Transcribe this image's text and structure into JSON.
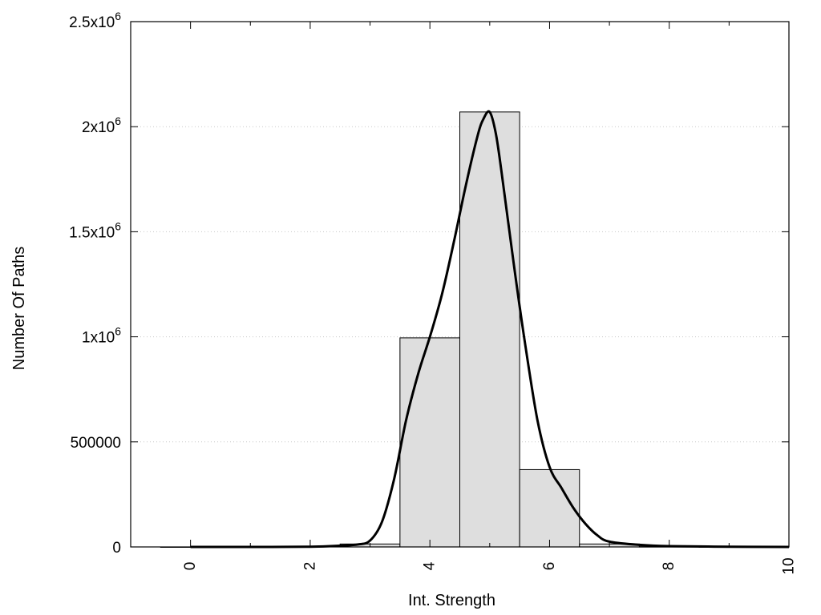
{
  "chart_data": {
    "type": "bar",
    "xlabel": "Int. Strength",
    "ylabel": "Number Of Paths",
    "xlim": [
      -1,
      10
    ],
    "ylim": [
      0,
      2500000
    ],
    "grid": "horizontal dotted",
    "x_ticks": [
      {
        "value": 0,
        "label": "0"
      },
      {
        "value": 2,
        "label": "2"
      },
      {
        "value": 4,
        "label": "4"
      },
      {
        "value": 6,
        "label": "6"
      },
      {
        "value": 8,
        "label": "8"
      },
      {
        "value": 10,
        "label": "10"
      }
    ],
    "y_ticks": [
      {
        "value": 0,
        "base": "0",
        "exp": ""
      },
      {
        "value": 500000,
        "base": "500000",
        "exp": ""
      },
      {
        "value": 1000000,
        "base": "1x10",
        "exp": "6"
      },
      {
        "value": 1500000,
        "base": "1.5x10",
        "exp": "6"
      },
      {
        "value": 2000000,
        "base": "2x10",
        "exp": "6"
      },
      {
        "value": 2500000,
        "base": "2.5x10",
        "exp": "6"
      }
    ],
    "bin_width": 1,
    "bars": [
      {
        "x": 0,
        "value": 0
      },
      {
        "x": 1,
        "value": 0
      },
      {
        "x": 2,
        "value": 2000
      },
      {
        "x": 3,
        "value": 14000
      },
      {
        "x": 4,
        "value": 995000
      },
      {
        "x": 5,
        "value": 2070000
      },
      {
        "x": 6,
        "value": 368000
      },
      {
        "x": 7,
        "value": 14000
      },
      {
        "x": 8,
        "value": 1500
      },
      {
        "x": 9,
        "value": 0
      }
    ],
    "fit_curve": {
      "x": [
        0,
        1,
        2,
        2.5,
        2.8,
        3.0,
        3.2,
        3.4,
        3.6,
        3.8,
        4.0,
        4.2,
        4.4,
        4.6,
        4.8,
        4.9,
        5.0,
        5.1,
        5.2,
        5.4,
        5.6,
        5.8,
        6.0,
        6.2,
        6.4,
        6.6,
        6.8,
        7.0,
        7.5,
        8,
        9,
        10
      ],
      "y": [
        0,
        0,
        1000,
        6000,
        12000,
        30000,
        120000,
        320000,
        600000,
        820000,
        1000000,
        1200000,
        1450000,
        1720000,
        1960000,
        2040000,
        2070000,
        1970000,
        1780000,
        1350000,
        950000,
        600000,
        380000,
        280000,
        185000,
        110000,
        55000,
        25000,
        10000,
        4000,
        1000,
        0
      ]
    }
  }
}
